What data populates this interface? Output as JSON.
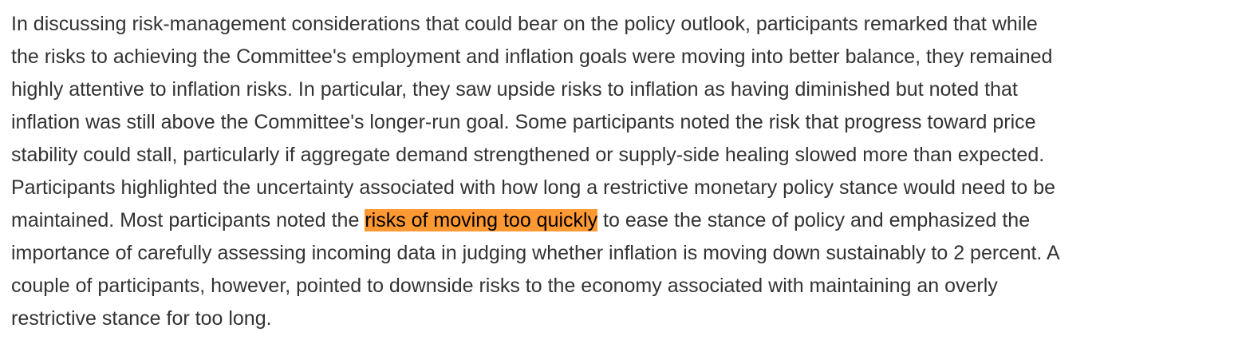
{
  "paragraph": {
    "lines": [
      "In discussing risk-management considerations that could bear on the policy outlook, participants remarked that while",
      "the risks to achieving the Committee's employment and inflation goals were moving into better balance, they remained",
      "highly attentive to inflation risks. In particular, they saw upside risks to inflation as having diminished but noted that",
      "inflation was still above the Committee's longer-run goal. Some participants noted the risk that progress toward price",
      "stability could stall, particularly if aggregate demand strengthened or supply-side healing slowed more than expected.",
      "Participants highlighted the uncertainty associated with how long a restrictive monetary policy stance would need to be"
    ],
    "line7_before": "maintained. Most participants noted the ",
    "highlight": "risks of moving too quickly",
    "line7_after": " to ease the stance of policy and emphasized the",
    "lines_after": [
      "importance of carefully assessing incoming data in judging whether inflation is moving down sustainably to 2 percent. A",
      "couple of participants, however, pointed to downside risks to the economy associated with maintaining an overly",
      "restrictive stance for too long."
    ],
    "highlight_color": "#ff9933",
    "text_color": "#333333"
  }
}
